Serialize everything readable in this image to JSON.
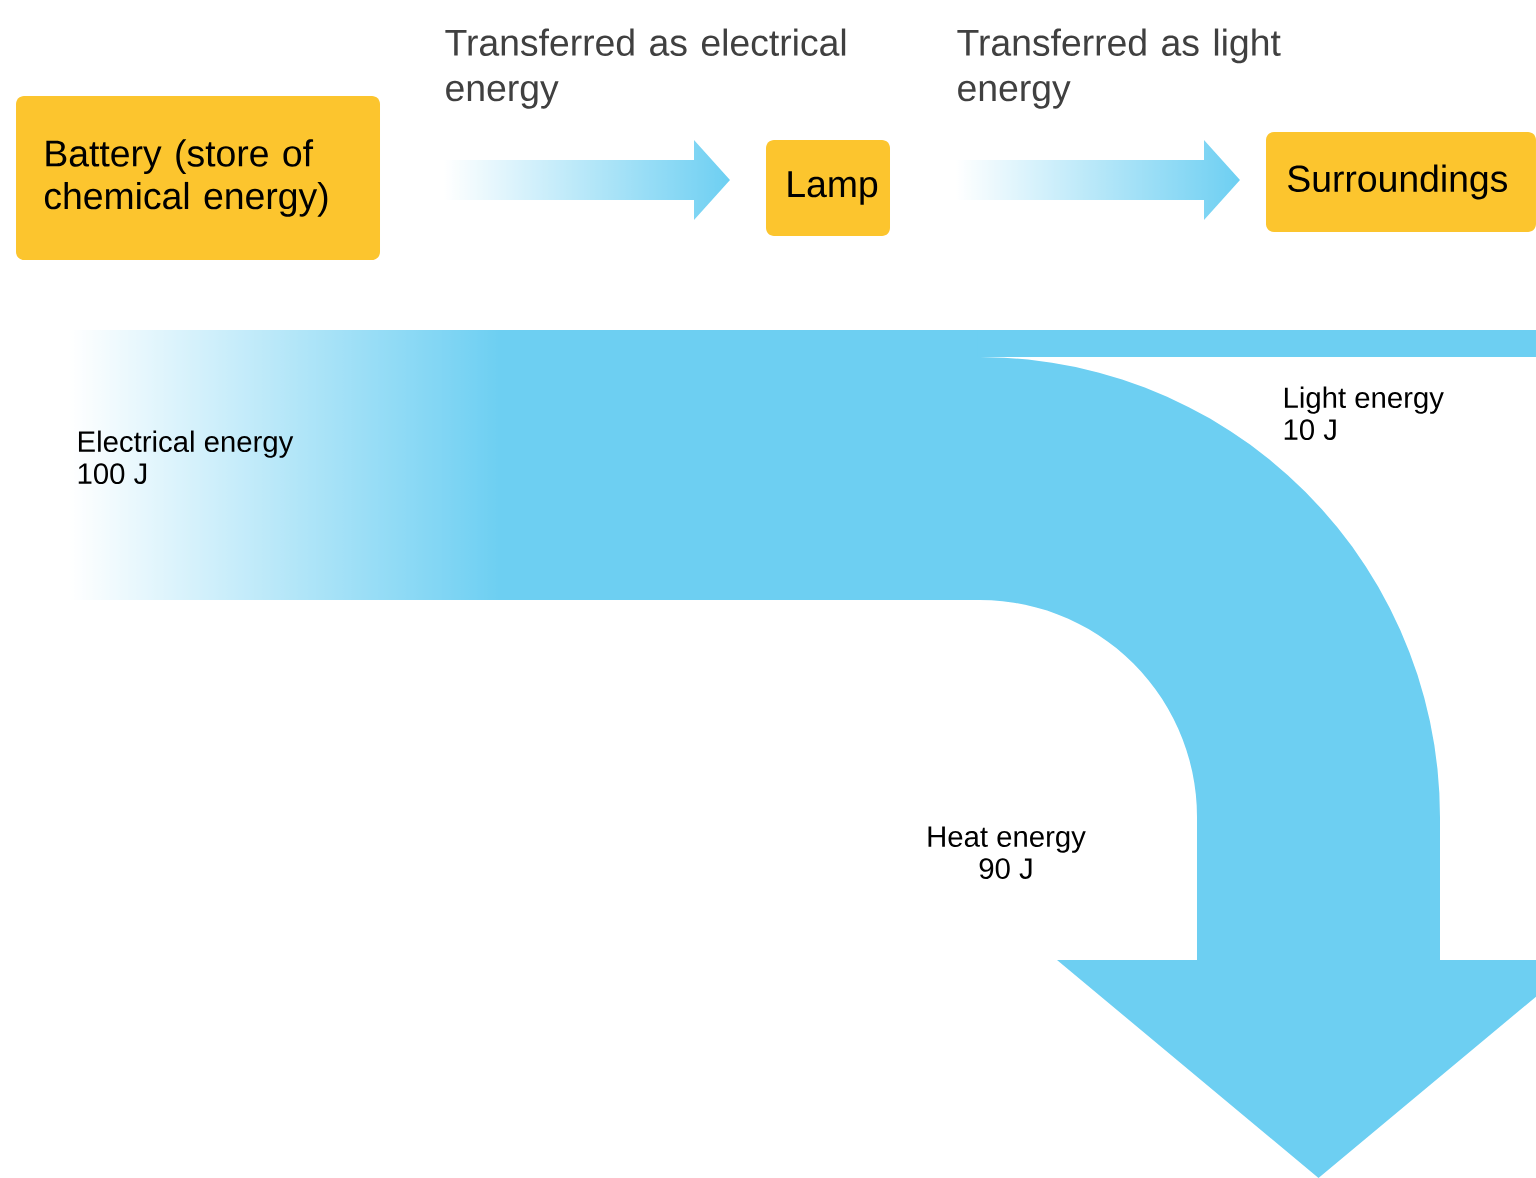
{
  "chart_data": {
    "type": "other",
    "categories": [
      "Electrical energy",
      "Light energy",
      "Heat energy"
    ],
    "values": [
      100,
      10,
      90
    ],
    "value_labels": [
      "100 J",
      "10 J",
      "90 J"
    ],
    "color": "#6dcff2",
    "annotations": [
      "Battery (store of chemical energy)",
      "Transferred as electrical energy",
      "Lamp",
      "Transferred as light energy",
      "Surroundings"
    ]
  }
}
